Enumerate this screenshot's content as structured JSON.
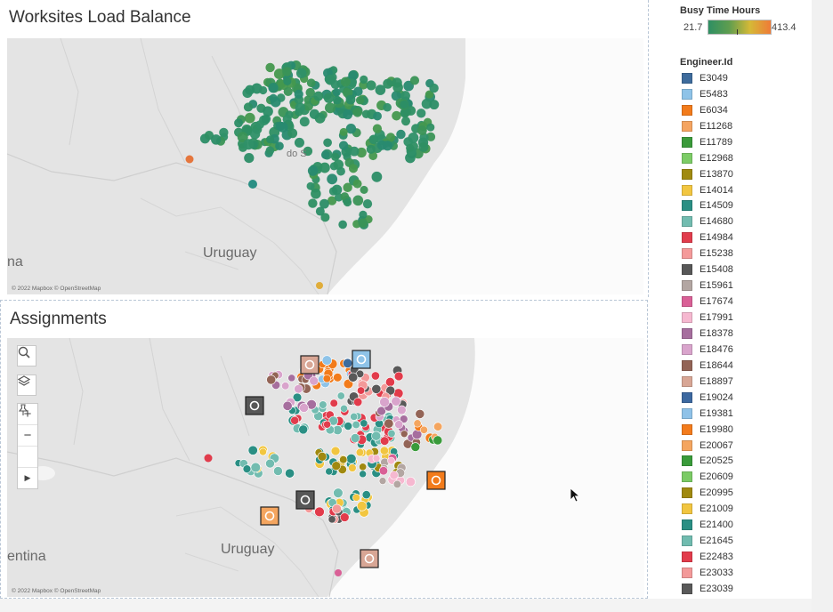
{
  "worksites": {
    "title": "Worksites Load Balance",
    "copyright": "© 2022 Mapbox © OpenStreetMap",
    "label_uruguay": "Uruguay",
    "label_partial": "na",
    "label_city": "do S"
  },
  "assignments": {
    "title": "Assignments",
    "copyright": "© 2022 Mapbox © OpenStreetMap",
    "label_uruguay": "Uruguay",
    "label_partial": "entina",
    "controls": [
      "search-icon",
      "layers-icon",
      "zoom-in",
      "zoom-out",
      "pin-icon",
      "play-icon"
    ],
    "zoom_in": "+",
    "zoom_out": "−",
    "expand": "▶"
  },
  "legend_busy": {
    "title": "Busy Time Hours",
    "min": "21.7",
    "max": "413.4"
  },
  "legend_engineer": {
    "title": "Engineer.Id",
    "items": [
      {
        "id": "E3049",
        "color": "#3e6b9c"
      },
      {
        "id": "E5483",
        "color": "#8ec3e8"
      },
      {
        "id": "E6034",
        "color": "#f27b1b"
      },
      {
        "id": "E11268",
        "color": "#f5a460"
      },
      {
        "id": "E11789",
        "color": "#3a9a3a"
      },
      {
        "id": "E12968",
        "color": "#7ccc66"
      },
      {
        "id": "E13870",
        "color": "#a08a10"
      },
      {
        "id": "E14014",
        "color": "#f2c640"
      },
      {
        "id": "E14509",
        "color": "#2a8f84"
      },
      {
        "id": "E14680",
        "color": "#72bcb0"
      },
      {
        "id": "E14984",
        "color": "#e13c4c"
      },
      {
        "id": "E15238",
        "color": "#f49a9a"
      },
      {
        "id": "E15408",
        "color": "#575757"
      },
      {
        "id": "E15961",
        "color": "#b3a6a2"
      },
      {
        "id": "E17674",
        "color": "#d96096"
      },
      {
        "id": "E17991",
        "color": "#f6b8d0"
      },
      {
        "id": "E18378",
        "color": "#a66e9e"
      },
      {
        "id": "E18476",
        "color": "#d9a4cc"
      },
      {
        "id": "E18644",
        "color": "#936456"
      },
      {
        "id": "E18897",
        "color": "#d8a695"
      },
      {
        "id": "E19024",
        "color": "#3c68a0"
      },
      {
        "id": "E19381",
        "color": "#8fc2e8"
      },
      {
        "id": "E19980",
        "color": "#f37b1c"
      },
      {
        "id": "E20067",
        "color": "#f4a55f"
      },
      {
        "id": "E20525",
        "color": "#399b3a"
      },
      {
        "id": "E20609",
        "color": "#7bcb65"
      },
      {
        "id": "E20995",
        "color": "#a0890f"
      },
      {
        "id": "E21009",
        "color": "#f1c540"
      },
      {
        "id": "E21400",
        "color": "#2a8f84"
      },
      {
        "id": "E21645",
        "color": "#70bbaf"
      },
      {
        "id": "E22483",
        "color": "#e23b4b"
      },
      {
        "id": "E23033",
        "color": "#f39999"
      },
      {
        "id": "E23039",
        "color": "#595959"
      }
    ]
  }
}
